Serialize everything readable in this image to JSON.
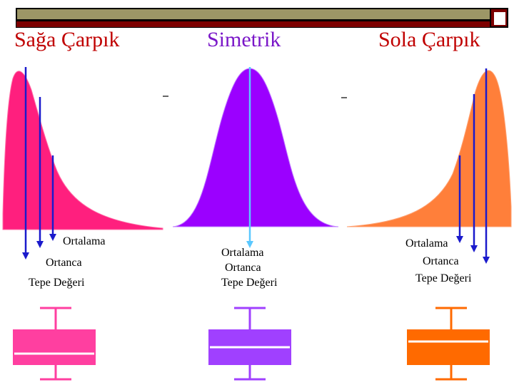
{
  "headings": {
    "right_skewed": "Sağa Çarpık",
    "symmetric": "Simetrik",
    "left_skewed": "Sola Çarpık"
  },
  "labels": {
    "mean": "Ortalama",
    "median": "Ortanca",
    "mode": "Tepe Değeri"
  },
  "colors": {
    "right_skewed": "#ff1f7e",
    "symmetric": "#9b00ff",
    "left_skewed": "#ff7f3a",
    "box_right_skewed": "#ff3fa0",
    "box_symmetric": "#a040ff",
    "box_left_skewed": "#ff6a00",
    "arrow": "#1a1acc",
    "arrow_symmetric": "#5ac8ff"
  }
}
